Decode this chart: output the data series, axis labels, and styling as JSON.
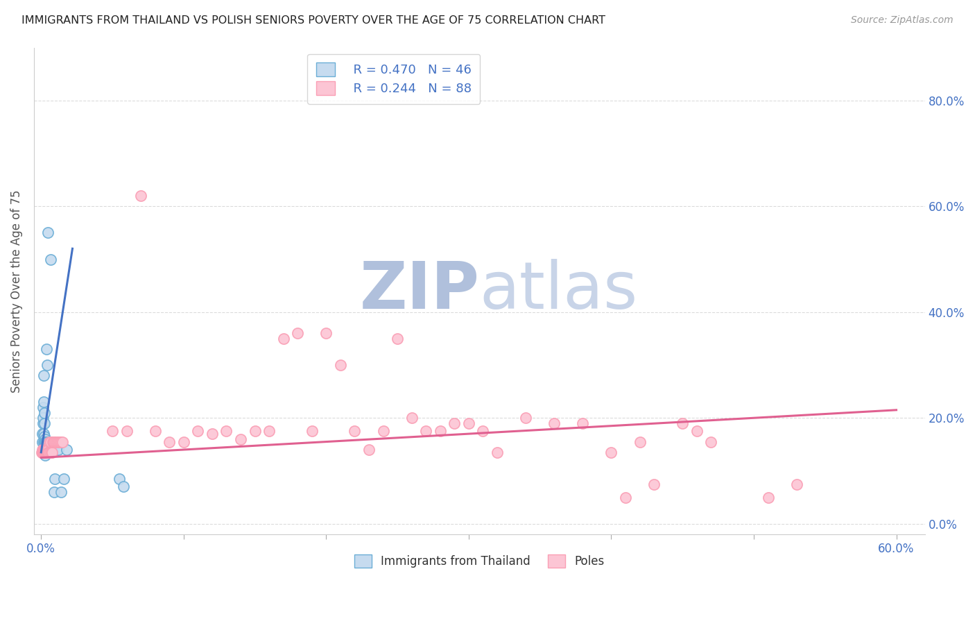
{
  "title": "IMMIGRANTS FROM THAILAND VS POLISH SENIORS POVERTY OVER THE AGE OF 75 CORRELATION CHART",
  "source": "Source: ZipAtlas.com",
  "ylabel": "Seniors Poverty Over the Age of 75",
  "series": [
    {
      "label": "Immigrants from Thailand",
      "R": 0.47,
      "N": 46,
      "line_color": "#4472c4",
      "face_color": "#c6dbef",
      "edge_color": "#6baed6",
      "linestyle": "solid",
      "points": [
        [
          0.0008,
          0.155
        ],
        [
          0.001,
          0.17
        ],
        [
          0.0012,
          0.19
        ],
        [
          0.0013,
          0.22
        ],
        [
          0.0015,
          0.2
        ],
        [
          0.0016,
          0.23
        ],
        [
          0.0017,
          0.17
        ],
        [
          0.0018,
          0.28
        ],
        [
          0.002,
          0.155
        ],
        [
          0.0022,
          0.19
        ],
        [
          0.0023,
          0.155
        ],
        [
          0.0024,
          0.21
        ],
        [
          0.0025,
          0.165
        ],
        [
          0.0026,
          0.14
        ],
        [
          0.0027,
          0.16
        ],
        [
          0.0028,
          0.13
        ],
        [
          0.0029,
          0.155
        ],
        [
          0.003,
          0.155
        ],
        [
          0.0032,
          0.155
        ],
        [
          0.0033,
          0.155
        ],
        [
          0.0035,
          0.155
        ],
        [
          0.0036,
          0.155
        ],
        [
          0.0038,
          0.155
        ],
        [
          0.004,
          0.33
        ],
        [
          0.0042,
          0.155
        ],
        [
          0.0045,
          0.3
        ],
        [
          0.0048,
          0.55
        ],
        [
          0.005,
          0.14
        ],
        [
          0.0055,
          0.155
        ],
        [
          0.0058,
          0.14
        ],
        [
          0.006,
          0.155
        ],
        [
          0.0065,
          0.5
        ],
        [
          0.007,
          0.14
        ],
        [
          0.0075,
          0.14
        ],
        [
          0.008,
          0.14
        ],
        [
          0.0085,
          0.155
        ],
        [
          0.009,
          0.06
        ],
        [
          0.0095,
          0.085
        ],
        [
          0.01,
          0.14
        ],
        [
          0.011,
          0.14
        ],
        [
          0.012,
          0.14
        ],
        [
          0.014,
          0.06
        ],
        [
          0.016,
          0.085
        ],
        [
          0.018,
          0.14
        ],
        [
          0.055,
          0.085
        ],
        [
          0.058,
          0.07
        ]
      ],
      "trend_x": [
        0.0,
        0.022
      ],
      "trend_y": [
        0.135,
        0.52
      ]
    },
    {
      "label": "Poles",
      "R": 0.244,
      "N": 88,
      "line_color": "#e06090",
      "face_color": "#fcc5d4",
      "edge_color": "#fa9fb5",
      "linestyle": "solid",
      "points": [
        [
          0.0005,
          0.135
        ],
        [
          0.0007,
          0.135
        ],
        [
          0.0008,
          0.135
        ],
        [
          0.0009,
          0.14
        ],
        [
          0.001,
          0.135
        ],
        [
          0.0011,
          0.135
        ],
        [
          0.0012,
          0.135
        ],
        [
          0.0013,
          0.14
        ],
        [
          0.0014,
          0.135
        ],
        [
          0.0015,
          0.135
        ],
        [
          0.0016,
          0.135
        ],
        [
          0.0017,
          0.14
        ],
        [
          0.0018,
          0.135
        ],
        [
          0.0019,
          0.135
        ],
        [
          0.002,
          0.135
        ],
        [
          0.0021,
          0.14
        ],
        [
          0.0022,
          0.135
        ],
        [
          0.0023,
          0.135
        ],
        [
          0.0024,
          0.135
        ],
        [
          0.0025,
          0.14
        ],
        [
          0.0026,
          0.135
        ],
        [
          0.0027,
          0.135
        ],
        [
          0.0028,
          0.135
        ],
        [
          0.003,
          0.14
        ],
        [
          0.0032,
          0.135
        ],
        [
          0.0034,
          0.135
        ],
        [
          0.0036,
          0.135
        ],
        [
          0.0038,
          0.14
        ],
        [
          0.004,
          0.135
        ],
        [
          0.0042,
          0.135
        ],
        [
          0.0044,
          0.135
        ],
        [
          0.0046,
          0.14
        ],
        [
          0.0048,
          0.135
        ],
        [
          0.005,
          0.135
        ],
        [
          0.0055,
          0.155
        ],
        [
          0.006,
          0.135
        ],
        [
          0.0065,
          0.155
        ],
        [
          0.007,
          0.135
        ],
        [
          0.0075,
          0.135
        ],
        [
          0.008,
          0.155
        ],
        [
          0.0085,
          0.155
        ],
        [
          0.009,
          0.155
        ],
        [
          0.01,
          0.155
        ],
        [
          0.011,
          0.155
        ],
        [
          0.012,
          0.155
        ],
        [
          0.013,
          0.155
        ],
        [
          0.014,
          0.155
        ],
        [
          0.015,
          0.155
        ],
        [
          0.05,
          0.175
        ],
        [
          0.06,
          0.175
        ],
        [
          0.07,
          0.62
        ],
        [
          0.08,
          0.175
        ],
        [
          0.09,
          0.155
        ],
        [
          0.1,
          0.155
        ],
        [
          0.11,
          0.175
        ],
        [
          0.12,
          0.17
        ],
        [
          0.13,
          0.175
        ],
        [
          0.14,
          0.16
        ],
        [
          0.15,
          0.175
        ],
        [
          0.16,
          0.175
        ],
        [
          0.17,
          0.35
        ],
        [
          0.18,
          0.36
        ],
        [
          0.19,
          0.175
        ],
        [
          0.2,
          0.36
        ],
        [
          0.21,
          0.3
        ],
        [
          0.22,
          0.175
        ],
        [
          0.23,
          0.14
        ],
        [
          0.24,
          0.175
        ],
        [
          0.25,
          0.35
        ],
        [
          0.26,
          0.2
        ],
        [
          0.27,
          0.175
        ],
        [
          0.28,
          0.175
        ],
        [
          0.29,
          0.19
        ],
        [
          0.3,
          0.19
        ],
        [
          0.31,
          0.175
        ],
        [
          0.32,
          0.135
        ],
        [
          0.34,
          0.2
        ],
        [
          0.36,
          0.19
        ],
        [
          0.38,
          0.19
        ],
        [
          0.4,
          0.135
        ],
        [
          0.41,
          0.05
        ],
        [
          0.42,
          0.155
        ],
        [
          0.43,
          0.075
        ],
        [
          0.45,
          0.19
        ],
        [
          0.46,
          0.175
        ],
        [
          0.47,
          0.155
        ],
        [
          0.51,
          0.05
        ],
        [
          0.53,
          0.075
        ]
      ],
      "trend_x": [
        0.0,
        0.6
      ],
      "trend_y": [
        0.125,
        0.215
      ]
    }
  ],
  "xlim": [
    -0.005,
    0.62
  ],
  "ylim": [
    -0.02,
    0.9
  ],
  "xticks": [
    0.0,
    0.1,
    0.2,
    0.3,
    0.4,
    0.5,
    0.6
  ],
  "xticklabels_show": [
    "0.0%",
    "60.0%"
  ],
  "xticklabels_positions": [
    0.0,
    0.6
  ],
  "yticks": [
    0.0,
    0.2,
    0.4,
    0.6,
    0.8
  ],
  "yticklabels_right": [
    "0.0%",
    "20.0%",
    "40.0%",
    "60.0%",
    "80.0%"
  ],
  "watermark_zip": "ZIP",
  "watermark_atlas": "atlas",
  "watermark_color": "#c8d4e8",
  "background_color": "#ffffff",
  "grid_color": "#d8d8d8",
  "title_color": "#222222",
  "axis_label_color": "#555555",
  "tick_label_color": "#4472c4",
  "legend_box_color": "#ffffff",
  "legend_border_color": "#cccccc"
}
